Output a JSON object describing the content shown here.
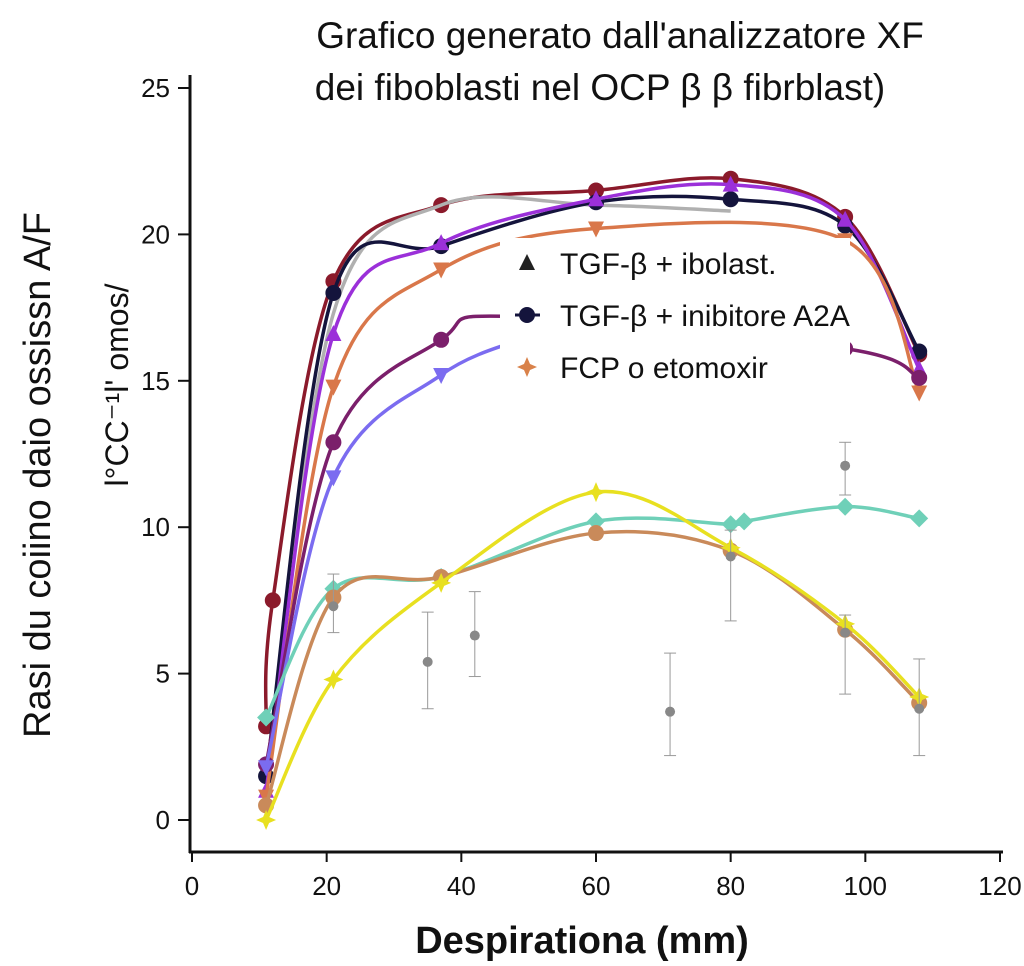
{
  "chart_data": {
    "type": "line",
    "title": [
      "Grafico generato dall'analizzatore XF",
      "dei fiboblasti nel  OCP β β fibrblast)"
    ],
    "xlabel": "Despirationa (mm)",
    "ylabel": "Rasi du coiino daio ossissn A/F",
    "ylabel_inner": "l°CC⁻¹l' omos/",
    "xlim": [
      0,
      120
    ],
    "ylim": [
      0,
      25
    ],
    "xticks": [
      "0",
      "20",
      "40",
      "60",
      "80",
      "100",
      "120"
    ],
    "yticks": [
      "0",
      "5",
      "10",
      "15",
      "20",
      "25"
    ],
    "grid": false,
    "legend_position": "center-right",
    "legend": [
      {
        "label": "TGF-β + ibolast.",
        "marker": "triangle",
        "color": "#222222"
      },
      {
        "label": "TGF-β + inibitore A2A",
        "marker": "circle",
        "color": "#14143c"
      },
      {
        "label": "FCP o etomoxir",
        "marker": "star",
        "color": "#d9824a"
      }
    ],
    "series": [
      {
        "color": "#8b1a2b",
        "marker": "circle",
        "x": [
          11,
          12,
          21,
          37,
          60,
          80,
          97,
          108
        ],
        "y": [
          3.2,
          7.5,
          18.4,
          21.0,
          21.5,
          21.9,
          20.6,
          15.9
        ]
      },
      {
        "color": "#b0b0b0",
        "marker": "none",
        "x": [
          11,
          21,
          37,
          60,
          80
        ],
        "y": [
          1.0,
          17.3,
          21.0,
          21.0,
          20.8
        ]
      },
      {
        "color": "#14143c",
        "marker": "circle",
        "x": [
          11,
          21,
          37,
          60,
          80,
          97,
          108
        ],
        "y": [
          1.5,
          18.0,
          19.6,
          21.1,
          21.2,
          20.3,
          16.0
        ]
      },
      {
        "color": "#9b30d9",
        "marker": "triangle",
        "x": [
          11,
          21,
          37,
          60,
          80,
          97,
          108
        ],
        "y": [
          1.0,
          16.6,
          19.7,
          21.2,
          21.7,
          20.5,
          15.4
        ]
      },
      {
        "color": "#d9774a",
        "marker": "triangle-down",
        "x": [
          11,
          21,
          37,
          60,
          97,
          108
        ],
        "y": [
          0.8,
          14.8,
          18.8,
          20.2,
          19.8,
          14.6
        ]
      },
      {
        "color": "#7b1f6b",
        "marker": "circle",
        "x": [
          11,
          21,
          37,
          47,
          97,
          108
        ],
        "y": [
          1.9,
          12.9,
          16.4,
          17.2,
          16.1,
          15.1
        ]
      },
      {
        "color": "#7b6cf0",
        "marker": "triangle-down",
        "x": [
          11,
          21,
          37,
          50
        ],
        "y": [
          1.8,
          11.7,
          15.2,
          16.5
        ]
      },
      {
        "color": "#6fd0b8",
        "marker": "diamond",
        "x": [
          11,
          21,
          37,
          60,
          80,
          82,
          97,
          108
        ],
        "y": [
          3.5,
          7.9,
          8.3,
          10.2,
          10.1,
          10.2,
          10.7,
          10.3
        ]
      },
      {
        "color": "#c98a5a",
        "marker": "circle",
        "x": [
          11,
          21,
          37,
          60,
          80,
          97,
          108
        ],
        "y": [
          0.5,
          7.6,
          8.3,
          9.8,
          9.2,
          6.5,
          4.0
        ]
      },
      {
        "color": "#e8e020",
        "marker": "star",
        "x": [
          11,
          21,
          37,
          60,
          80,
          97,
          108
        ],
        "y": [
          0.0,
          4.8,
          8.1,
          11.2,
          9.3,
          6.7,
          4.2
        ]
      }
    ],
    "scatter_points": [
      {
        "x": 21,
        "y": 7.3,
        "ylow": 6.4,
        "yhigh": 8.4
      },
      {
        "x": 35,
        "y": 5.4,
        "ylow": 3.8,
        "yhigh": 7.1
      },
      {
        "x": 42,
        "y": 6.3,
        "ylow": 4.9,
        "yhigh": 7.8
      },
      {
        "x": 71,
        "y": 3.7,
        "ylow": 2.2,
        "yhigh": 5.7
      },
      {
        "x": 80,
        "y": 9.0,
        "ylow": 6.8,
        "yhigh": 9.9
      },
      {
        "x": 97,
        "y": 12.1,
        "ylow": 11.1,
        "yhigh": 12.9
      },
      {
        "x": 97,
        "y": 6.4,
        "ylow": 4.3,
        "yhigh": 7.0
      },
      {
        "x": 108,
        "y": 3.8,
        "ylow": 2.2,
        "yhigh": 5.5
      }
    ]
  }
}
